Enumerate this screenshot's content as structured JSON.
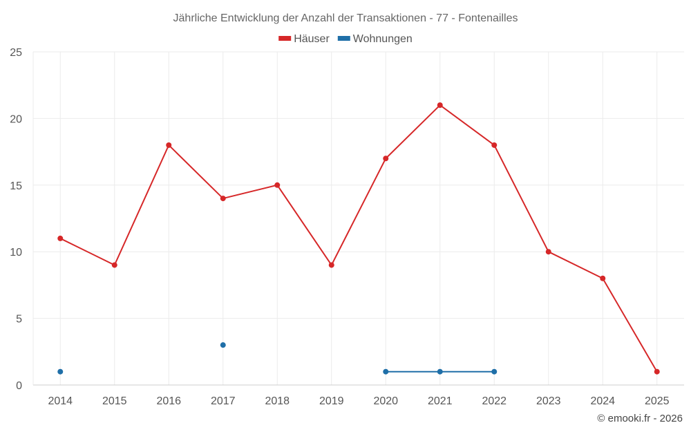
{
  "chart_data": {
    "type": "line",
    "title": "Jährliche Entwicklung der Anzahl der Transaktionen - 77 - Fontenailles",
    "xlabel": "",
    "ylabel": "",
    "categories": [
      "2014",
      "2015",
      "2016",
      "2017",
      "2018",
      "2019",
      "2020",
      "2021",
      "2022",
      "2023",
      "2024",
      "2025"
    ],
    "ylim": [
      0,
      25
    ],
    "yticks": [
      0,
      5,
      10,
      15,
      20,
      25
    ],
    "grid": true,
    "legend_position": "top",
    "series": [
      {
        "name": "Häuser",
        "color": "#d62728",
        "values": [
          11,
          9,
          18,
          14,
          15,
          9,
          17,
          21,
          18,
          10,
          8,
          1
        ]
      },
      {
        "name": "Wohnungen",
        "color": "#1f6fa8",
        "values": [
          1,
          null,
          null,
          3,
          null,
          null,
          1,
          1,
          1,
          null,
          null,
          null
        ]
      }
    ]
  },
  "credit": "© emooki.fr - 2026"
}
